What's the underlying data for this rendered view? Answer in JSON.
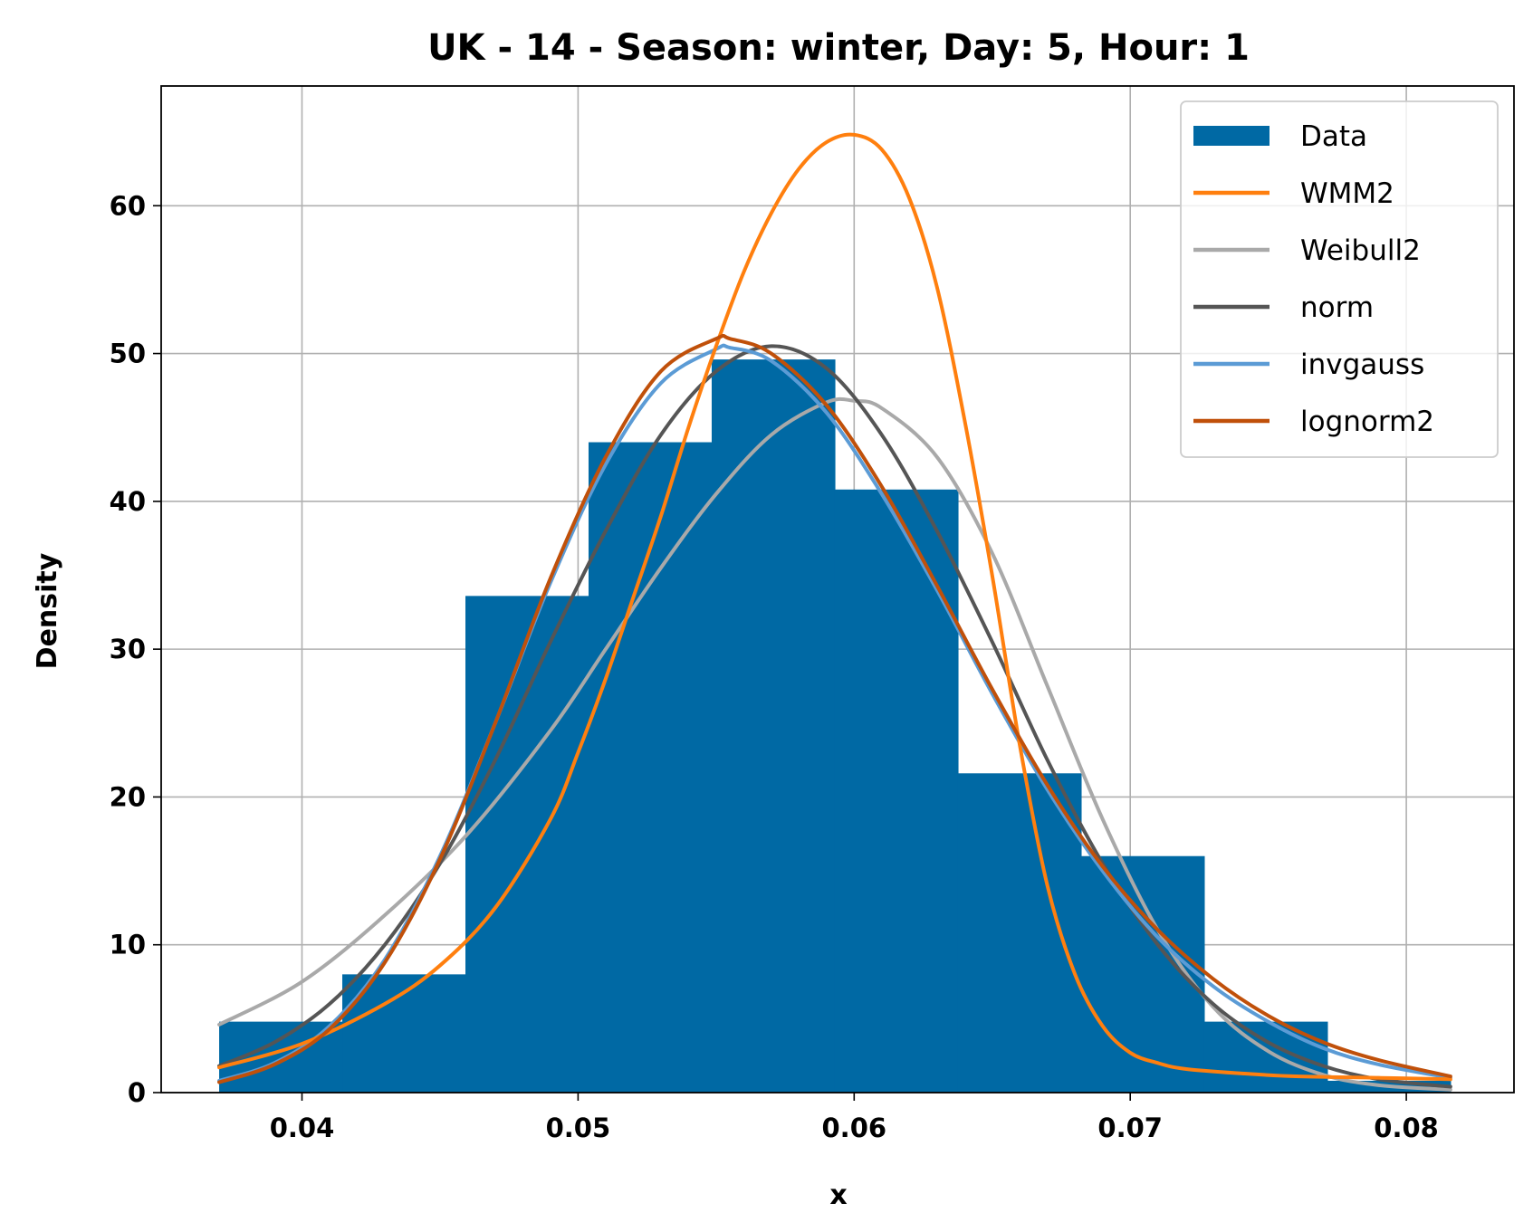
{
  "chart_data": {
    "type": "histogram",
    "title": "UK - 14 - Season: winter, Day: 5, Hour: 1",
    "xlabel": "x",
    "ylabel": "Density",
    "xlim": [
      0.0349,
      0.0839
    ],
    "ylim": [
      0,
      68.1
    ],
    "xticks": [
      {
        "value": 0.04,
        "label": "0.04"
      },
      {
        "value": 0.05,
        "label": "0.05"
      },
      {
        "value": 0.06,
        "label": "0.06"
      },
      {
        "value": 0.07,
        "label": "0.07"
      },
      {
        "value": 0.08,
        "label": "0.08"
      }
    ],
    "yticks": [
      {
        "value": 0,
        "label": "0"
      },
      {
        "value": 10,
        "label": "10"
      },
      {
        "value": 20,
        "label": "20"
      },
      {
        "value": 30,
        "label": "30"
      },
      {
        "value": 40,
        "label": "40"
      },
      {
        "value": 50,
        "label": "50"
      },
      {
        "value": 60,
        "label": "60"
      }
    ],
    "grid": true,
    "legend_position": "top-right",
    "histogram": {
      "name": "Data",
      "color": "#0069a4",
      "bin_edges": [
        0.037,
        0.04146,
        0.04592,
        0.05038,
        0.05484,
        0.0593,
        0.06376,
        0.06822,
        0.07268,
        0.07714,
        0.0816
      ],
      "density": [
        4.8,
        8.0,
        33.6,
        44.0,
        49.6,
        40.8,
        21.6,
        16.0,
        4.8,
        0.8
      ]
    },
    "series": [
      {
        "name": "WMM2",
        "color": "#ff7f0e",
        "x": [
          0.037,
          0.04,
          0.043,
          0.045,
          0.047,
          0.049,
          0.05,
          0.051,
          0.052,
          0.053,
          0.054,
          0.055,
          0.056,
          0.057,
          0.058,
          0.059,
          0.06,
          0.061,
          0.062,
          0.063,
          0.064,
          0.065,
          0.066,
          0.067,
          0.068,
          0.069,
          0.07,
          0.071,
          0.072,
          0.074,
          0.076,
          0.079,
          0.0816
        ],
        "y": [
          1.7,
          3.3,
          6.0,
          8.6,
          12.5,
          18.5,
          23.0,
          28.0,
          33.5,
          39.0,
          45.0,
          50.5,
          55.5,
          59.5,
          62.5,
          64.3,
          64.8,
          63.8,
          60.5,
          54.5,
          45.5,
          35.0,
          23.5,
          14.0,
          8.0,
          4.5,
          2.7,
          2.0,
          1.6,
          1.3,
          1.1,
          1.0,
          0.9
        ]
      },
      {
        "name": "Weibull2",
        "color": "#a9a9a9",
        "x": [
          0.037,
          0.04,
          0.043,
          0.046,
          0.049,
          0.051,
          0.053,
          0.055,
          0.057,
          0.059,
          0.06,
          0.061,
          0.063,
          0.065,
          0.067,
          0.069,
          0.071,
          0.073,
          0.075,
          0.077,
          0.079,
          0.0816
        ],
        "y": [
          4.6,
          7.5,
          12.0,
          17.5,
          24.5,
          30.0,
          35.5,
          40.5,
          44.5,
          46.7,
          46.8,
          46.3,
          43.0,
          36.5,
          27.5,
          18.5,
          11.0,
          5.8,
          2.8,
          1.2,
          0.5,
          0.2
        ]
      },
      {
        "name": "norm",
        "color": "#555555",
        "x": [
          0.037,
          0.039,
          0.041,
          0.043,
          0.045,
          0.047,
          0.049,
          0.051,
          0.053,
          0.055,
          0.057,
          0.059,
          0.061,
          0.063,
          0.065,
          0.067,
          0.069,
          0.071,
          0.073,
          0.075,
          0.077,
          0.079,
          0.0816
        ],
        "y": [
          1.8,
          3.4,
          6.0,
          10.0,
          15.5,
          22.5,
          30.5,
          38.0,
          44.5,
          48.8,
          50.5,
          49.0,
          44.5,
          38.0,
          30.5,
          22.5,
          15.5,
          10.0,
          6.0,
          3.4,
          1.8,
          0.9,
          0.4
        ]
      },
      {
        "name": "invgauss",
        "color": "#5b9bd5",
        "x": [
          0.037,
          0.039,
          0.041,
          0.043,
          0.045,
          0.047,
          0.049,
          0.051,
          0.053,
          0.055,
          0.0555,
          0.057,
          0.059,
          0.061,
          0.063,
          0.065,
          0.067,
          0.069,
          0.071,
          0.073,
          0.075,
          0.077,
          0.079,
          0.0816
        ],
        "y": [
          0.8,
          2.0,
          4.5,
          9.0,
          16.0,
          25.0,
          34.5,
          42.5,
          48.0,
          50.3,
          50.4,
          49.5,
          46.0,
          40.5,
          34.0,
          27.0,
          20.5,
          15.0,
          10.5,
          7.2,
          4.8,
          3.0,
          1.9,
          1.0
        ]
      },
      {
        "name": "lognorm2",
        "color": "#c0500a",
        "x": [
          0.037,
          0.039,
          0.041,
          0.043,
          0.045,
          0.047,
          0.049,
          0.051,
          0.053,
          0.055,
          0.0555,
          0.057,
          0.059,
          0.061,
          0.063,
          0.065,
          0.067,
          0.069,
          0.071,
          0.073,
          0.075,
          0.077,
          0.079,
          0.0816
        ],
        "y": [
          0.7,
          1.9,
          4.3,
          8.8,
          15.8,
          25.0,
          34.8,
          43.0,
          48.8,
          51.0,
          51.0,
          50.0,
          46.5,
          41.0,
          34.3,
          27.3,
          20.8,
          15.3,
          11.0,
          7.7,
          5.2,
          3.4,
          2.2,
          1.1
        ]
      }
    ]
  }
}
